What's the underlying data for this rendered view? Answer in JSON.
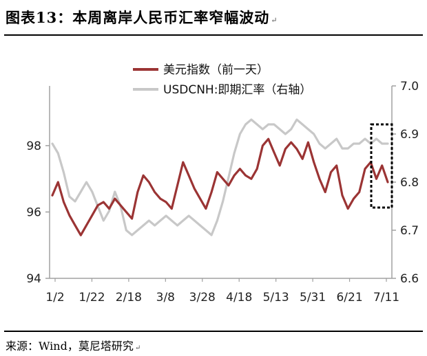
{
  "header": {
    "title": "图表13：本周离岸人民币汇率窄幅波动",
    "return_mark": "↵"
  },
  "footer": {
    "source": "来源：Wind，莫尼塔研究",
    "return_mark": "↵"
  },
  "chart_data": {
    "type": "line",
    "x_labels": [
      "1/2",
      "1/22",
      "2/18",
      "3/8",
      "3/28",
      "4/18",
      "5/13",
      "5/31",
      "6/21",
      "7/11"
    ],
    "left_axis": {
      "min": 94,
      "max": 99.8,
      "ticks": [
        94,
        96,
        98
      ]
    },
    "right_axis": {
      "min": 6.6,
      "max": 7.0,
      "ticks": [
        "6.6",
        "6.7",
        "6.8",
        "6.9",
        "7.0"
      ]
    },
    "legend_placement": "top-left",
    "grid": false,
    "highlight": {
      "type": "dotted-box",
      "note": "latest week"
    },
    "series": [
      {
        "name": "美元指数（前一天）",
        "axis": "left",
        "color": "#9B3434",
        "values": [
          96.5,
          96.9,
          96.3,
          95.9,
          95.6,
          95.3,
          95.6,
          95.9,
          96.2,
          96.3,
          96.1,
          96.4,
          96.2,
          96.0,
          95.8,
          96.6,
          97.1,
          96.9,
          96.6,
          96.4,
          96.3,
          96.1,
          96.8,
          97.5,
          97.1,
          96.7,
          96.4,
          96.1,
          96.6,
          97.2,
          97.0,
          96.8,
          97.1,
          97.3,
          97.1,
          97.0,
          97.3,
          98.0,
          98.2,
          97.8,
          97.4,
          97.9,
          98.1,
          97.9,
          97.6,
          98.1,
          97.5,
          97.0,
          96.6,
          97.2,
          97.4,
          96.5,
          96.1,
          96.4,
          96.6,
          97.3,
          97.5,
          97.0,
          97.4,
          96.9
        ]
      },
      {
        "name": "USDCNH:即期汇率（右轴）",
        "axis": "right",
        "color": "#C8C8C8",
        "values": [
          6.88,
          6.86,
          6.82,
          6.77,
          6.76,
          6.78,
          6.8,
          6.78,
          6.75,
          6.72,
          6.74,
          6.78,
          6.75,
          6.7,
          6.69,
          6.7,
          6.71,
          6.72,
          6.71,
          6.72,
          6.73,
          6.72,
          6.71,
          6.72,
          6.73,
          6.72,
          6.71,
          6.7,
          6.69,
          6.72,
          6.76,
          6.81,
          6.86,
          6.9,
          6.92,
          6.93,
          6.92,
          6.91,
          6.92,
          6.92,
          6.91,
          6.9,
          6.91,
          6.93,
          6.92,
          6.91,
          6.9,
          6.88,
          6.87,
          6.88,
          6.89,
          6.87,
          6.87,
          6.88,
          6.88,
          6.89,
          6.88,
          6.89,
          6.88,
          6.88
        ]
      }
    ]
  }
}
